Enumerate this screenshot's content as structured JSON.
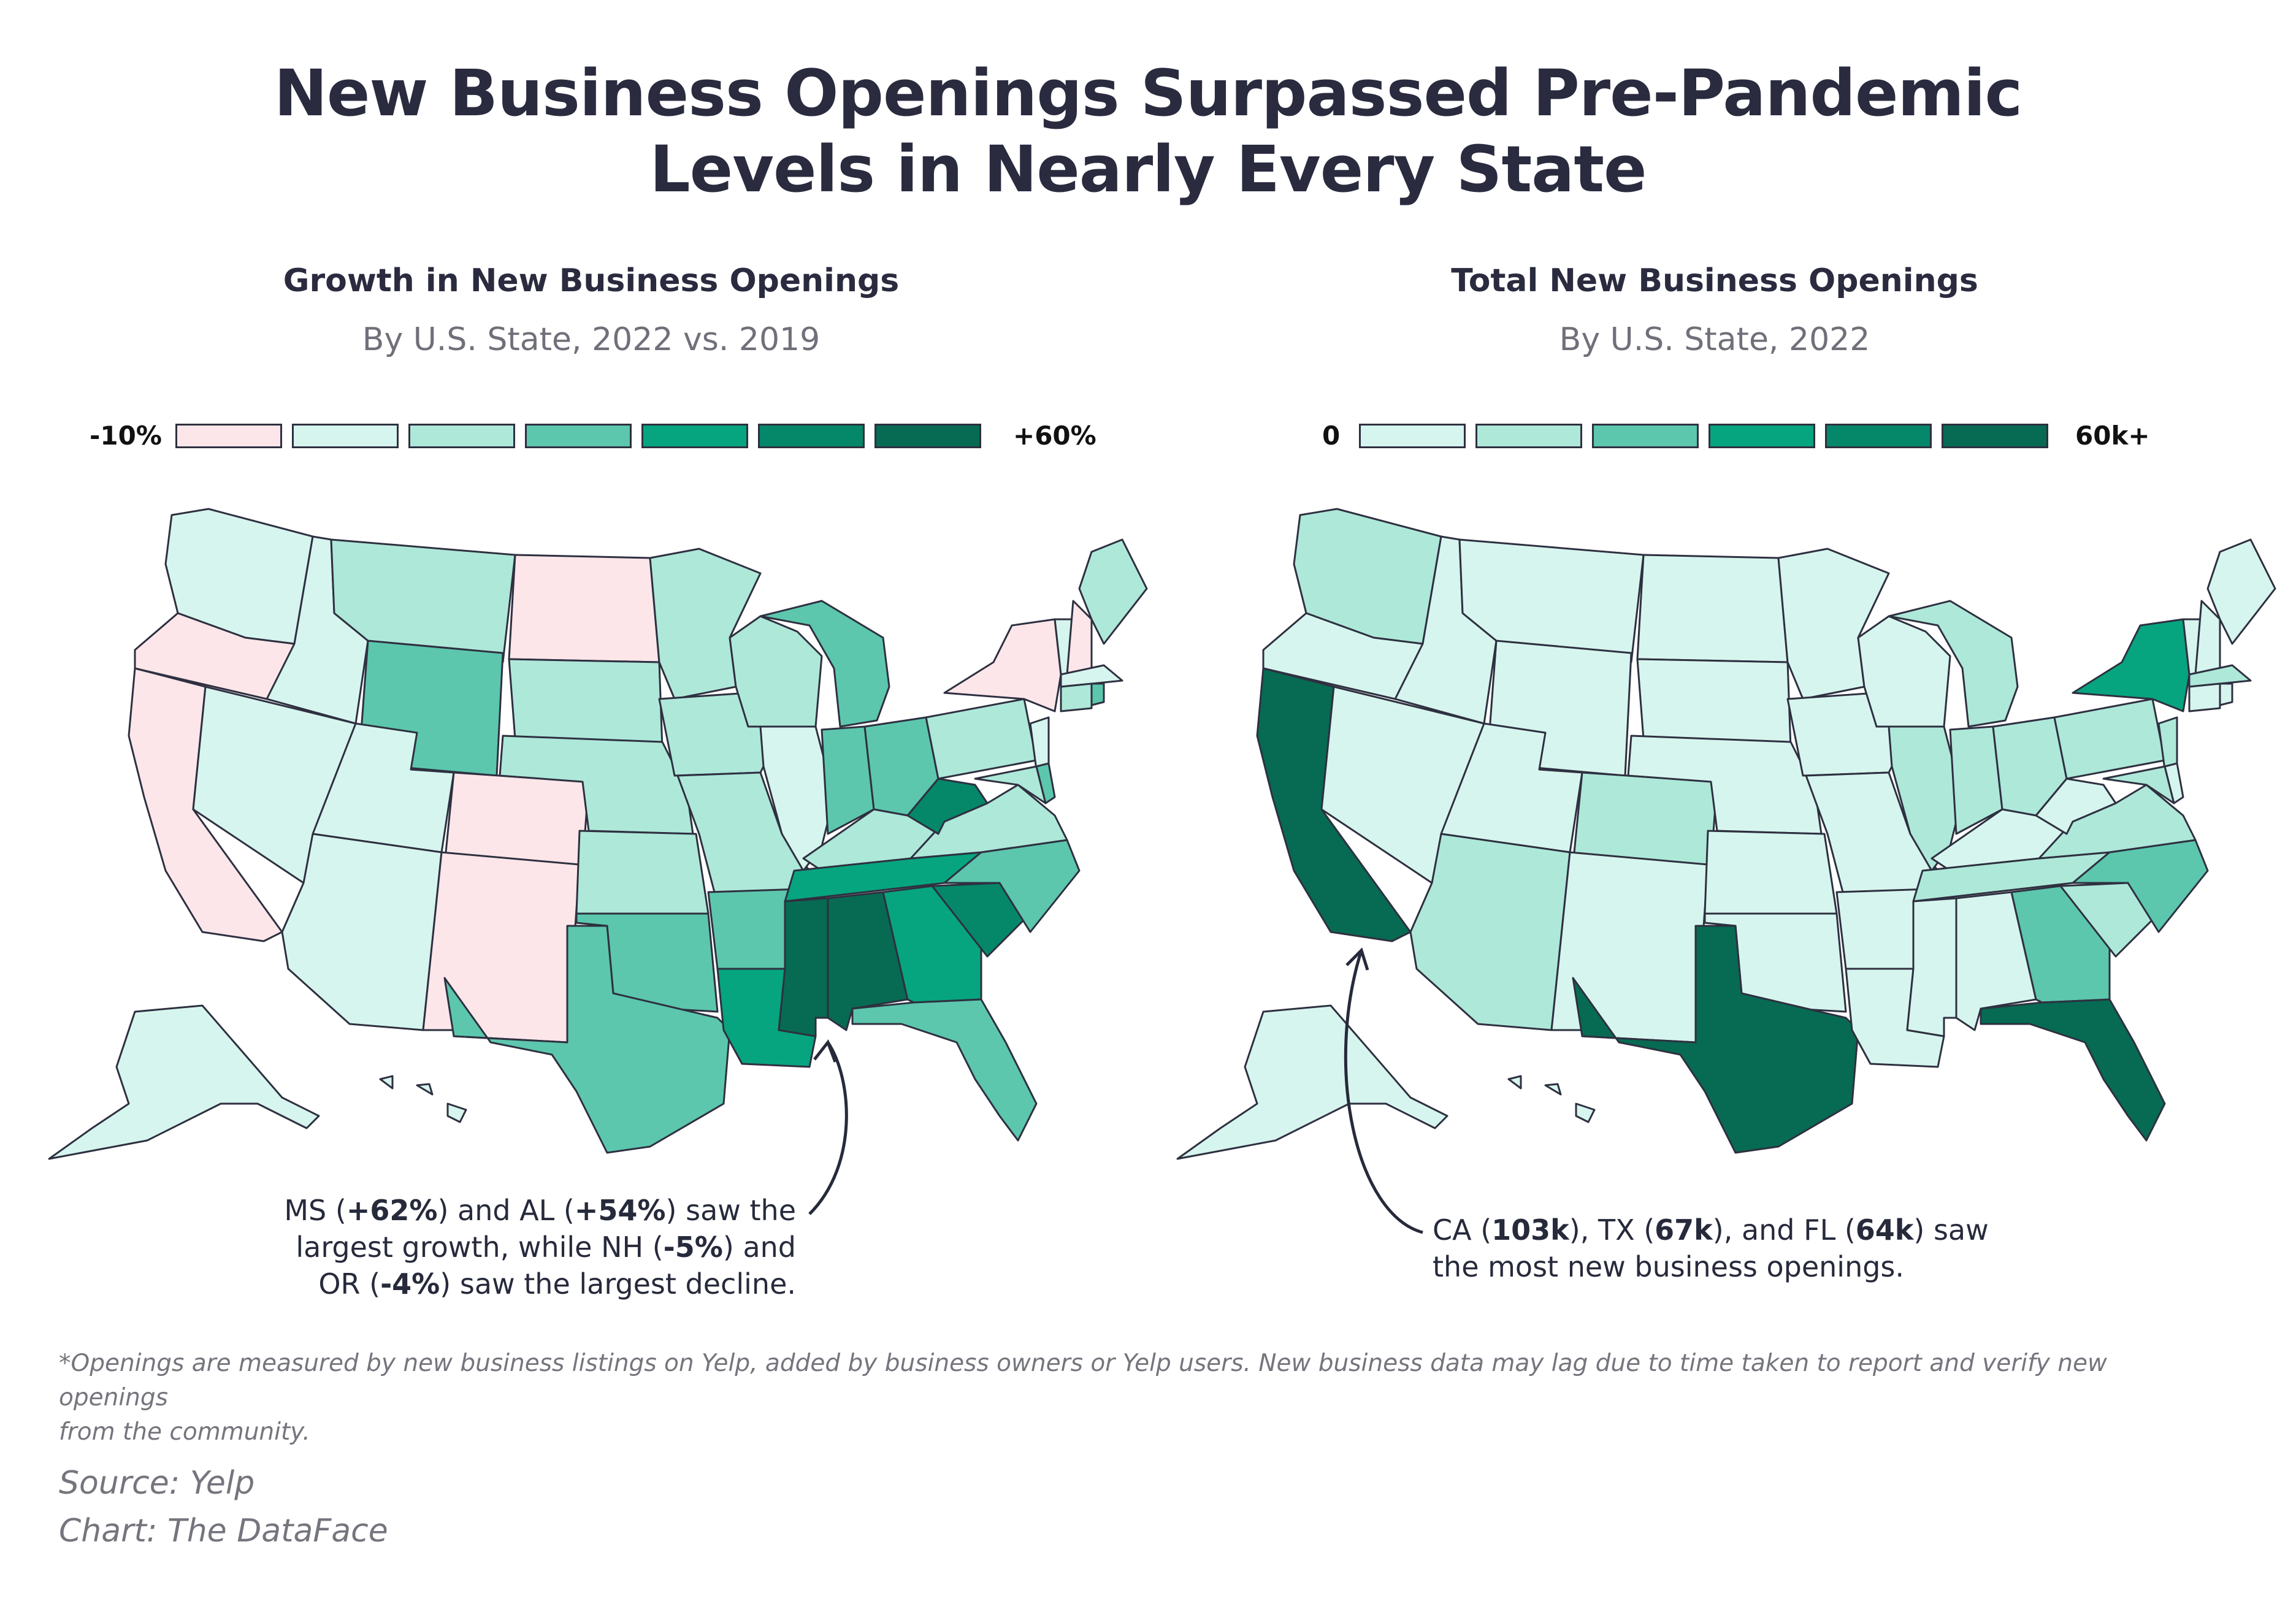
{
  "title": {
    "line1": "New Business Openings Surpassed Pre-Pandemic",
    "line2": "Levels in Nearly Every State"
  },
  "left_panel": {
    "title": "Growth in New Business Openings",
    "subtitle": "By U.S. State, 2022 vs. 2019",
    "legend_min": "-10%",
    "legend_max": "+60%",
    "legend_colors": [
      "#fde6e9",
      "#d6f5ee",
      "#aee8d9",
      "#5cc7ad",
      "#06a57f",
      "#05876a",
      "#066b52"
    ],
    "annotation": {
      "s1": "MS (",
      "b1": "+62%",
      "s2": ") and AL (",
      "b2": "+54%",
      "s3": ") saw the",
      "s4": "largest growth, while NH (",
      "b3": "-5%",
      "s5": ") and",
      "s6": "OR (",
      "b4": "-4%",
      "s7": ") saw the largest decline."
    }
  },
  "right_panel": {
    "title": "Total New Business Openings",
    "subtitle": "By U.S. State, 2022",
    "legend_min": "0",
    "legend_max": "60k+",
    "legend_colors": [
      "#d6f5ee",
      "#aee8d9",
      "#5cc7ad",
      "#06a57f",
      "#05876a",
      "#066b52"
    ],
    "annotation": {
      "s1": "CA (",
      "b1": "103k",
      "s2": "), TX (",
      "b2": "67k",
      "s3": "), and FL (",
      "b3": "64k",
      "s4": ") saw",
      "s5": "the most new business openings."
    }
  },
  "colors": {
    "neg": "#fde6e9",
    "b1": "#d6f5ee",
    "b2": "#aee8d9",
    "b3": "#5cc7ad",
    "b4": "#06a57f",
    "b5": "#05876a",
    "b6": "#066b52",
    "stroke": "#2e3040"
  },
  "footnote": {
    "line1": "*Openings are measured by new business listings on Yelp, added by business owners or Yelp users. New business data may lag due to time taken to report and verify new openings",
    "line2": "from the community."
  },
  "source": {
    "line1": "Source: Yelp",
    "line2": "Chart: The DataFace"
  }
}
